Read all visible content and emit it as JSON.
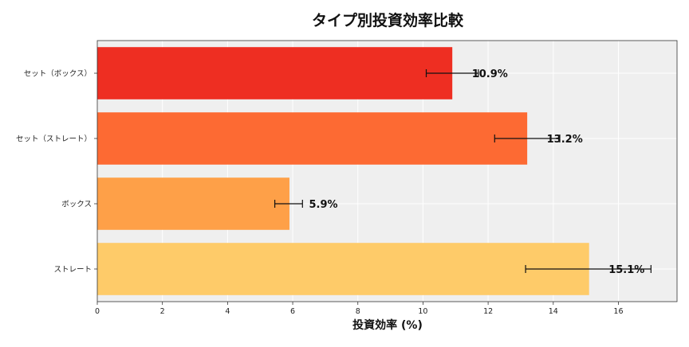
{
  "chart_data": {
    "type": "bar",
    "orientation": "horizontal",
    "title": "タイプ別投資効率比較",
    "xlabel": "投資効率 (%)",
    "ylabel": "",
    "xlim": [
      0,
      17.8
    ],
    "xticks": [
      0,
      2,
      4,
      6,
      8,
      10,
      12,
      14,
      16
    ],
    "grid": true,
    "categories": [
      "セット（ボックス）",
      "セット（ストレート）",
      "ボックス",
      "ストレート"
    ],
    "values": [
      10.9,
      13.2,
      5.9,
      15.1
    ],
    "error_low": [
      10.1,
      12.2,
      5.45,
      13.15
    ],
    "error_high": [
      11.7,
      14.2,
      6.3,
      17.0
    ],
    "data_labels": [
      "10.9%",
      "13.2%",
      "5.9%",
      "15.1%"
    ],
    "colors": [
      "#ee2e22",
      "#fd6a33",
      "#fea048",
      "#fecb69"
    ],
    "plot_background": "#efefef"
  }
}
